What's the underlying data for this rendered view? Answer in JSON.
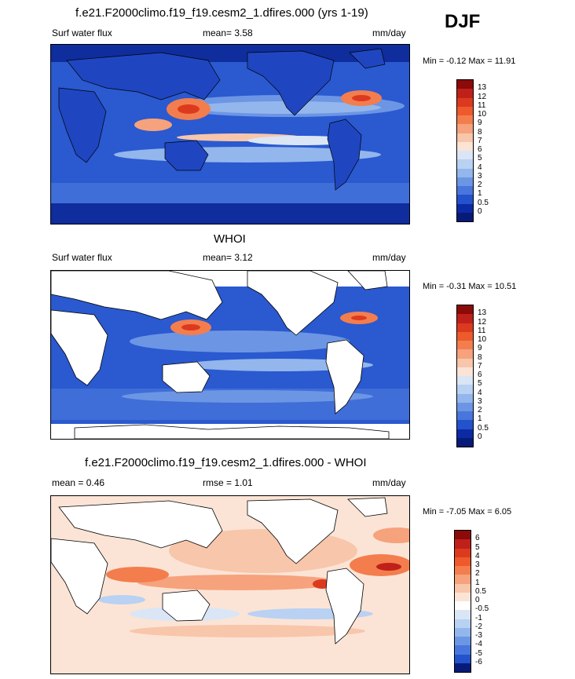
{
  "season": "DJF",
  "panels": [
    {
      "title": "f.e21.F2000climo.f19_f19.cesm2_1.dfires.000 (yrs 1-19)",
      "left_label": "Surf water flux",
      "center_label": "mean=   3.58",
      "right_label": "mm/day",
      "minmax": "Min =  -0.12 Max =  11.91",
      "colorbar": {
        "labels": [
          "13",
          "12",
          "11",
          "10",
          "9",
          "8",
          "7",
          "6",
          "5",
          "4",
          "3",
          "2",
          "1",
          "0.5",
          "0"
        ],
        "colors": [
          "#8b0a0a",
          "#c0201a",
          "#dc3a1f",
          "#ee5a2c",
          "#f47d4d",
          "#f6a27c",
          "#f8c6aa",
          "#fbe4d6",
          "#dae6f6",
          "#b9d1f2",
          "#93b6ec",
          "#6c96e4",
          "#4876dc",
          "#2452cc",
          "#0c2aa4",
          "#081a78"
        ]
      }
    },
    {
      "title": "WHOI",
      "left_label": "Surf water flux",
      "center_label": "mean=   3.12",
      "right_label": "mm/day",
      "minmax": "Min =  -0.31 Max =  10.51",
      "colorbar": {
        "labels": [
          "13",
          "12",
          "11",
          "10",
          "9",
          "8",
          "7",
          "6",
          "5",
          "4",
          "3",
          "2",
          "1",
          "0.5",
          "0"
        ],
        "colors": [
          "#8b0a0a",
          "#c0201a",
          "#dc3a1f",
          "#ee5a2c",
          "#f47d4d",
          "#f6a27c",
          "#f8c6aa",
          "#fbe4d6",
          "#dae6f6",
          "#b9d1f2",
          "#93b6ec",
          "#6c96e4",
          "#4876dc",
          "#2452cc",
          "#0c2aa4",
          "#081a78"
        ]
      }
    },
    {
      "title": "f.e21.F2000climo.f19_f19.cesm2_1.dfires.000 - WHOI",
      "left_label": "mean =   0.46",
      "center_label": "rmse =   1.01",
      "right_label": "mm/day",
      "minmax": "Min =  -7.05 Max =   6.05",
      "colorbar": {
        "labels": [
          "6",
          "5",
          "4",
          "3",
          "2",
          "1",
          "0.5",
          "0",
          "-0.5",
          "-1",
          "-2",
          "-3",
          "-4",
          "-5",
          "-6"
        ],
        "colors": [
          "#8b0a0a",
          "#c0201a",
          "#dc3a1f",
          "#ee5a2c",
          "#f47d4d",
          "#f6a27c",
          "#f8c6aa",
          "#fbe4d6",
          "#ffffff",
          "#dae6f6",
          "#b9d1f2",
          "#93b6ec",
          "#6c96e4",
          "#4876dc",
          "#2452cc",
          "#081a78"
        ]
      }
    }
  ],
  "chart_data": [
    {
      "type": "heatmap",
      "title": "f.e21.F2000climo.f19_f19.cesm2_1.dfires.000 (yrs 1-19)",
      "variable": "Surf water flux",
      "units": "mm/day",
      "season": "DJF",
      "mean": 3.58,
      "min": -0.12,
      "max": 11.91,
      "levels": [
        0,
        0.5,
        1,
        2,
        3,
        4,
        5,
        6,
        7,
        8,
        9,
        10,
        11,
        12,
        13
      ]
    },
    {
      "type": "heatmap",
      "title": "WHOI",
      "variable": "Surf water flux",
      "units": "mm/day",
      "season": "DJF",
      "mean": 3.12,
      "min": -0.31,
      "max": 10.51,
      "levels": [
        0,
        0.5,
        1,
        2,
        3,
        4,
        5,
        6,
        7,
        8,
        9,
        10,
        11,
        12,
        13
      ]
    },
    {
      "type": "heatmap",
      "title": "f.e21.F2000climo.f19_f19.cesm2_1.dfires.000 - WHOI",
      "units": "mm/day",
      "season": "DJF",
      "mean": 0.46,
      "rmse": 1.01,
      "min": -7.05,
      "max": 6.05,
      "levels": [
        -6,
        -5,
        -4,
        -3,
        -2,
        -1,
        -0.5,
        0,
        0.5,
        1,
        2,
        3,
        4,
        5,
        6
      ]
    }
  ]
}
